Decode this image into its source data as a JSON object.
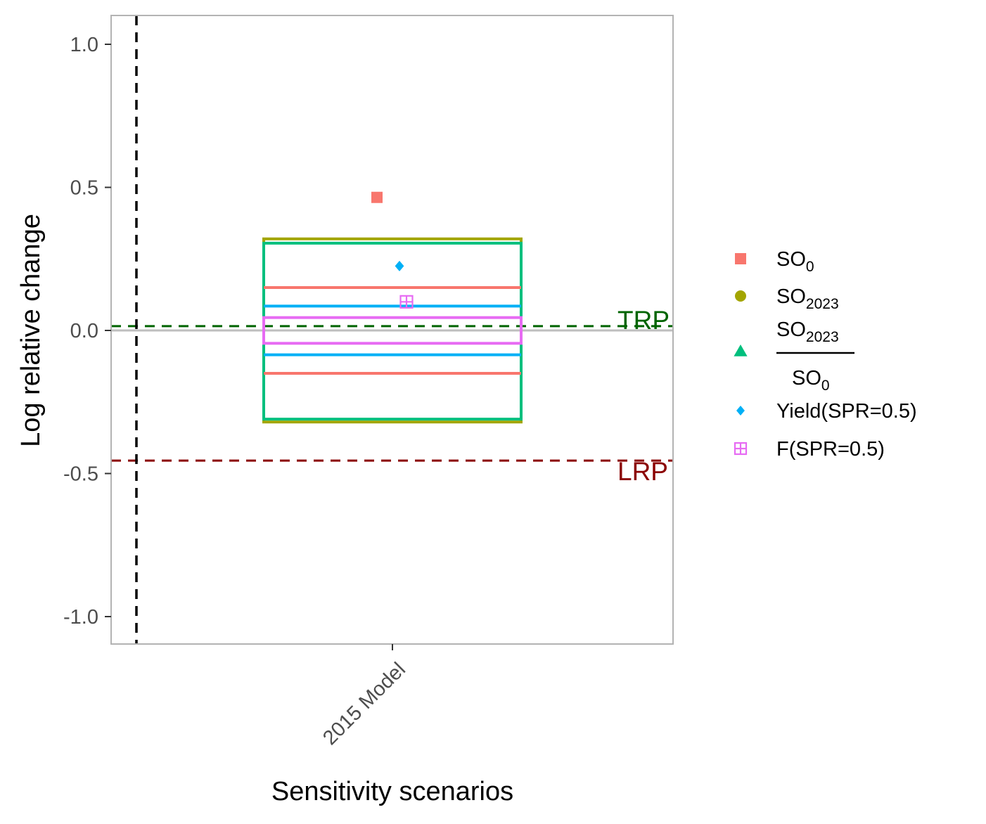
{
  "chart_data": {
    "type": "scatter",
    "xlabel": "Sensitivity scenarios",
    "ylabel": "Log relative change",
    "ylim": [
      -1.1,
      1.1
    ],
    "y_ticks": [
      -1.0,
      -0.5,
      0.0,
      0.5,
      1.0
    ],
    "y_tick_labels": [
      "-1.0",
      "-0.5",
      "0.0",
      "0.5",
      "1.0"
    ],
    "categories": [
      "2015 Model"
    ],
    "grid": false,
    "legend_position": "right",
    "series": [
      {
        "name": "SO0",
        "label_main": "SO",
        "label_sub": "0",
        "shape": "square",
        "color": "#F8766D",
        "point": 0.465,
        "interval": [
          -0.15,
          0.15
        ],
        "x_offset": -0.055
      },
      {
        "name": "SO2023",
        "label_main": "SO",
        "label_sub": "2023",
        "shape": "circle",
        "color": "#A3A500",
        "point": null,
        "interval": [
          -0.32,
          0.32
        ],
        "x_offset": 0
      },
      {
        "name": "SO2023/SO0",
        "label_num": "SO",
        "label_num_sub": "2023",
        "label_den": "SO",
        "label_den_sub": "0",
        "shape": "triangle",
        "color": "#00BF7D",
        "point": null,
        "interval": [
          -0.31,
          0.305
        ],
        "x_offset": 0
      },
      {
        "name": "Yield(SPR=0.5)",
        "label_main": "Yield(SPR=0.5)",
        "shape": "diamond",
        "color": "#00B0F6",
        "point": 0.225,
        "interval": [
          -0.085,
          0.085
        ],
        "x_offset": 0.025
      },
      {
        "name": "F(SPR=0.5)",
        "label_main": "F(SPR=0.5)",
        "shape": "boxplus",
        "color": "#E76BF3",
        "point": 0.1,
        "interval": [
          -0.045,
          0.045
        ],
        "x_offset": 0.05
      }
    ],
    "reference_lines": [
      {
        "label": "TRP",
        "y": 0.015,
        "color": "#006400",
        "style": "dashed"
      },
      {
        "label": "LRP",
        "y": -0.455,
        "color": "#8B0000",
        "style": "dashed"
      },
      {
        "label": "",
        "y": 0.0,
        "color": "#BEBEBE",
        "style": "solid"
      }
    ],
    "vertical_reference": {
      "x_category_offset": -0.91,
      "color": "#000000",
      "style": "dashed"
    }
  }
}
